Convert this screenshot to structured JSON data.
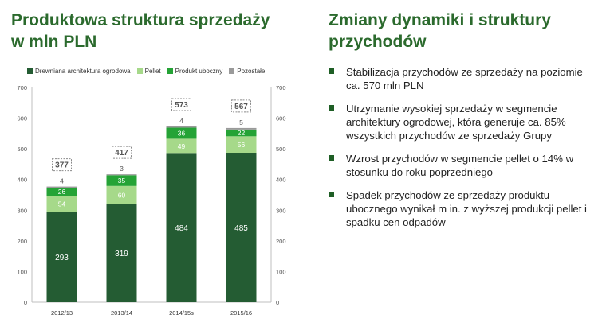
{
  "left_panel": {
    "title": "Produktowa struktura sprzedaży w mln PLN"
  },
  "right_panel": {
    "title": "Zmiany dynamiki i struktury przychodów",
    "bullets": [
      "Stabilizacja przychodów ze sprzedaży na poziomie ca. 570 mln PLN",
      "Utrzymanie wysokiej sprzedaży w segmencie architektury ogrodowej, która generuje ca. 85% wszystkich przychodów ze sprzedaży Grupy",
      "Wzrost przychodów w segmencie pellet o 14% w stosunku do roku poprzedniego",
      "Spadek przychodów ze sprzedaży produktu ubocznego wynikał m in. z wyższej produkcji pellet i spadku cen odpadów"
    ]
  },
  "chart_data": {
    "type": "bar",
    "stacked": true,
    "categories": [
      "2012/13",
      "2013/14",
      "2014/15s",
      "2015/16"
    ],
    "series": [
      {
        "name": "Drewniana architektura ogrodowa",
        "color": "#245c33",
        "values": [
          293,
          319,
          484,
          485
        ]
      },
      {
        "name": "Pellet",
        "color": "#a6d98a",
        "values": [
          54,
          60,
          49,
          56
        ]
      },
      {
        "name": "Produkt uboczny",
        "color": "#25a336",
        "values": [
          26,
          35,
          36,
          22
        ]
      },
      {
        "name": "Pozostałe",
        "color": "#9a9a9a",
        "values": [
          4,
          3,
          4,
          5
        ]
      }
    ],
    "totals": [
      377,
      417,
      573,
      567
    ],
    "ylim": [
      0,
      700
    ],
    "yticks": [
      0,
      100,
      200,
      300,
      400,
      500,
      600,
      700
    ],
    "secondary_axis": true,
    "grid": false,
    "legend_position": "top",
    "title": "",
    "xlabel": "",
    "ylabel": ""
  }
}
